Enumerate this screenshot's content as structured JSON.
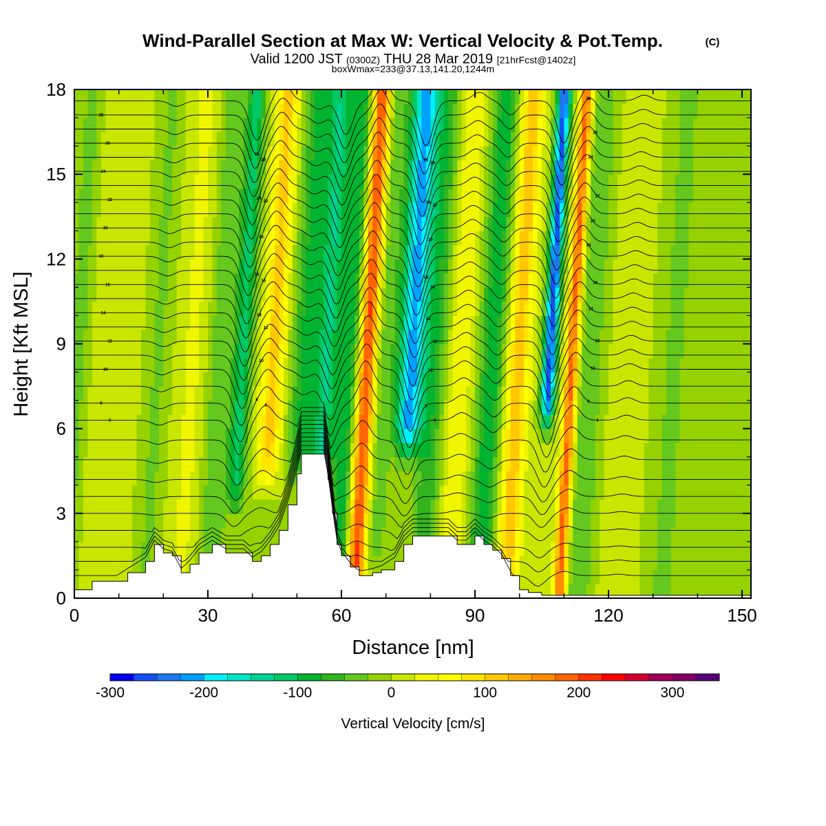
{
  "title": {
    "main": "Wind-Parallel Section at Max W: Vertical Velocity & Pot.Temp.",
    "copyright": "(C)",
    "valid_a": "Valid 1200 JST ",
    "valid_b": "(0300Z)",
    "valid_c": " THU 28 Mar 2019 ",
    "valid_d": "[21hrFcst@1402z]",
    "box": "boxWmax=233@37.13,141.20,1244m"
  },
  "chart_data": {
    "type": "heatmap",
    "title": "Wind-Parallel Section at Max W: Vertical Velocity & Pot.Temp.",
    "xlabel": "Distance [nm]",
    "ylabel": "Height [Kft MSL]",
    "xlim": [
      0,
      152
    ],
    "ylim": [
      0,
      18
    ],
    "x_ticks": [
      {
        "v": 0,
        "label": "0"
      },
      {
        "v": 30,
        "label": "30"
      },
      {
        "v": 60,
        "label": "60"
      },
      {
        "v": 90,
        "label": "90"
      },
      {
        "v": 120,
        "label": "120"
      },
      {
        "v": 150,
        "label": "150"
      }
    ],
    "y_ticks": [
      {
        "v": 0,
        "label": "0"
      },
      {
        "v": 3,
        "label": "3"
      },
      {
        "v": 6,
        "label": "6"
      },
      {
        "v": 9,
        "label": "9"
      },
      {
        "v": 12,
        "label": "12"
      },
      {
        "v": 15,
        "label": "15"
      },
      {
        "v": 18,
        "label": "18"
      }
    ],
    "colorbar": {
      "label": "Vertical Velocity [cm/s]",
      "min": -300,
      "step": 25,
      "colors": [
        "#0000f0",
        "#1450f5",
        "#1e78f0",
        "#00a0ff",
        "#00f0ff",
        "#00e6c8",
        "#00d296",
        "#00c864",
        "#00b432",
        "#32b41e",
        "#64c81e",
        "#96d200",
        "#c8e600",
        "#f0f500",
        "#ffff00",
        "#ffe600",
        "#ffc800",
        "#ffaa00",
        "#ff8c00",
        "#ff6400",
        "#ff3200",
        "#ff0000",
        "#d20032",
        "#a0005a",
        "#820064",
        "#5a0078"
      ],
      "tick_labels": [
        {
          "v": -300,
          "label": "-300"
        },
        {
          "v": -200,
          "label": "-200"
        },
        {
          "v": -100,
          "label": "-100"
        },
        {
          "v": 0,
          "label": "0"
        },
        {
          "v": 100,
          "label": "100"
        },
        {
          "v": 200,
          "label": "200"
        },
        {
          "v": 300,
          "label": "300"
        }
      ]
    },
    "field_bands": [
      {
        "x_center": 1,
        "x_width": 2,
        "y_range": [
          0,
          18
        ],
        "w": -40
      },
      {
        "x_center": 10,
        "x_width": 5,
        "y_range": [
          0,
          18
        ],
        "w": 20
      },
      {
        "x_center": 19,
        "x_width": 3,
        "y_range": [
          0,
          18
        ],
        "w": -30
      },
      {
        "x_center": 27,
        "x_width": 4,
        "y_range": [
          0,
          18
        ],
        "w": 30
      },
      {
        "x_center": 33,
        "x_width": 3,
        "y_range": [
          0,
          18
        ],
        "w": -50
      },
      {
        "x_center": 38,
        "x_width": 2,
        "y_range": [
          4,
          18
        ],
        "w": -110
      },
      {
        "x_center": 45,
        "x_width": 2.5,
        "y_range": [
          5,
          18
        ],
        "w": 110
      },
      {
        "x_center": 52,
        "x_width": 3,
        "y_range": [
          5,
          18
        ],
        "w": -80
      },
      {
        "x_center": 57,
        "x_width": 2.5,
        "y_range": [
          5,
          18
        ],
        "w": -120
      },
      {
        "x_center": 62,
        "x_width": 2.5,
        "y_range": [
          1,
          18
        ],
        "w": -90
      },
      {
        "x_center": 66,
        "x_width": 2,
        "y_range": [
          1,
          18
        ],
        "w": 210
      },
      {
        "x_center": 70,
        "x_width": 2.5,
        "y_range": [
          2,
          18
        ],
        "w": -40
      },
      {
        "x_center": 76,
        "x_width": 3,
        "y_range": [
          6,
          18
        ],
        "w": -210
      },
      {
        "x_center": 81,
        "x_width": 3,
        "y_range": [
          2,
          18
        ],
        "w": -70
      },
      {
        "x_center": 87,
        "x_width": 3,
        "y_range": [
          2,
          18
        ],
        "w": 50
      },
      {
        "x_center": 94,
        "x_width": 3,
        "y_range": [
          1,
          18
        ],
        "w": -90
      },
      {
        "x_center": 100,
        "x_width": 2.5,
        "y_range": [
          0,
          18
        ],
        "w": 120
      },
      {
        "x_center": 107,
        "x_width": 1.5,
        "y_range": [
          7,
          18
        ],
        "w": -260
      },
      {
        "x_center": 112,
        "x_width": 1.5,
        "y_range": [
          0,
          18
        ],
        "w": 190
      },
      {
        "x_center": 116,
        "x_width": 3,
        "y_range": [
          0,
          18
        ],
        "w": -50
      },
      {
        "x_center": 125,
        "x_width": 4,
        "y_range": [
          0,
          18
        ],
        "w": 20
      },
      {
        "x_center": 135,
        "x_width": 4,
        "y_range": [
          0,
          18
        ],
        "w": -30
      },
      {
        "x_center": 145,
        "x_width": 4,
        "y_range": [
          0,
          18
        ],
        "w": -20
      }
    ],
    "terrain_profile": [
      [
        0,
        0.3
      ],
      [
        4,
        0.6
      ],
      [
        9,
        0.6
      ],
      [
        12,
        0.9
      ],
      [
        16,
        1.3
      ],
      [
        18,
        1.9
      ],
      [
        20,
        1.6
      ],
      [
        22,
        1.5
      ],
      [
        24,
        0.9
      ],
      [
        26,
        1.2
      ],
      [
        28,
        1.6
      ],
      [
        31,
        1.9
      ],
      [
        34,
        1.6
      ],
      [
        38,
        1.6
      ],
      [
        40,
        1.3
      ],
      [
        42,
        1.5
      ],
      [
        44,
        1.9
      ],
      [
        46,
        2.4
      ],
      [
        48,
        3.3
      ],
      [
        50,
        4.4
      ],
      [
        51,
        5.1
      ],
      [
        56,
        5.1
      ],
      [
        57,
        4.2
      ],
      [
        58,
        3.0
      ],
      [
        59,
        1.9
      ],
      [
        60,
        1.5
      ],
      [
        62,
        1.1
      ],
      [
        64,
        0.8
      ],
      [
        67,
        0.9
      ],
      [
        69,
        1.0
      ],
      [
        72,
        1.3
      ],
      [
        74,
        1.9
      ],
      [
        76,
        2.2
      ],
      [
        84,
        2.2
      ],
      [
        86,
        1.9
      ],
      [
        88,
        1.9
      ],
      [
        90,
        2.2
      ],
      [
        92,
        1.9
      ],
      [
        94,
        1.7
      ],
      [
        96,
        1.4
      ],
      [
        98,
        0.8
      ],
      [
        100,
        0.3
      ],
      [
        102,
        0.2
      ],
      [
        105,
        0.1
      ],
      [
        110,
        0.1
      ],
      [
        152,
        0.1
      ]
    ],
    "isentrope_levels": [
      {
        "base": 0.8,
        "label": ""
      },
      {
        "base": 1.3,
        "label": ""
      },
      {
        "base": 1.8,
        "label": ""
      },
      {
        "base": 2.4,
        "label": ""
      },
      {
        "base": 3.0,
        "label": ""
      },
      {
        "base": 3.6,
        "label": ""
      },
      {
        "base": 4.2,
        "label": ""
      },
      {
        "base": 4.9,
        "label": ""
      },
      {
        "base": 5.6,
        "label": ""
      },
      {
        "base": 6.3,
        "label": "6"
      },
      {
        "base": 6.9,
        "label": "8"
      },
      {
        "base": 7.5,
        "label": ""
      },
      {
        "base": 8.1,
        "label": "10"
      },
      {
        "base": 8.6,
        "label": ""
      },
      {
        "base": 9.1,
        "label": "12"
      },
      {
        "base": 9.6,
        "label": ""
      },
      {
        "base": 10.1,
        "label": "14"
      },
      {
        "base": 10.6,
        "label": ""
      },
      {
        "base": 11.1,
        "label": "16"
      },
      {
        "base": 11.6,
        "label": ""
      },
      {
        "base": 12.1,
        "label": "18"
      },
      {
        "base": 12.6,
        "label": ""
      },
      {
        "base": 13.1,
        "label": "20"
      },
      {
        "base": 13.6,
        "label": ""
      },
      {
        "base": 14.1,
        "label": "22"
      },
      {
        "base": 14.6,
        "label": ""
      },
      {
        "base": 15.1,
        "label": "24"
      },
      {
        "base": 15.6,
        "label": ""
      },
      {
        "base": 16.1,
        "label": "26"
      },
      {
        "base": 16.6,
        "label": ""
      },
      {
        "base": 17.1,
        "label": "28"
      },
      {
        "base": 17.6,
        "label": ""
      }
    ],
    "isentrope_perturbations": [
      {
        "x": 20,
        "dy": -0.2
      },
      {
        "x": 38,
        "dy": -1.4
      },
      {
        "x": 44,
        "dy": 0.6
      },
      {
        "x": 52,
        "dy": -0.3
      },
      {
        "x": 58,
        "dy": -1.2
      },
      {
        "x": 66,
        "dy": 0.9
      },
      {
        "x": 76,
        "dy": -1.6
      },
      {
        "x": 88,
        "dy": 0.3
      },
      {
        "x": 95,
        "dy": -0.5
      },
      {
        "x": 107,
        "dy": -1.5
      },
      {
        "x": 113,
        "dy": 0.6
      },
      {
        "x": 125,
        "dy": 0.2
      }
    ]
  }
}
